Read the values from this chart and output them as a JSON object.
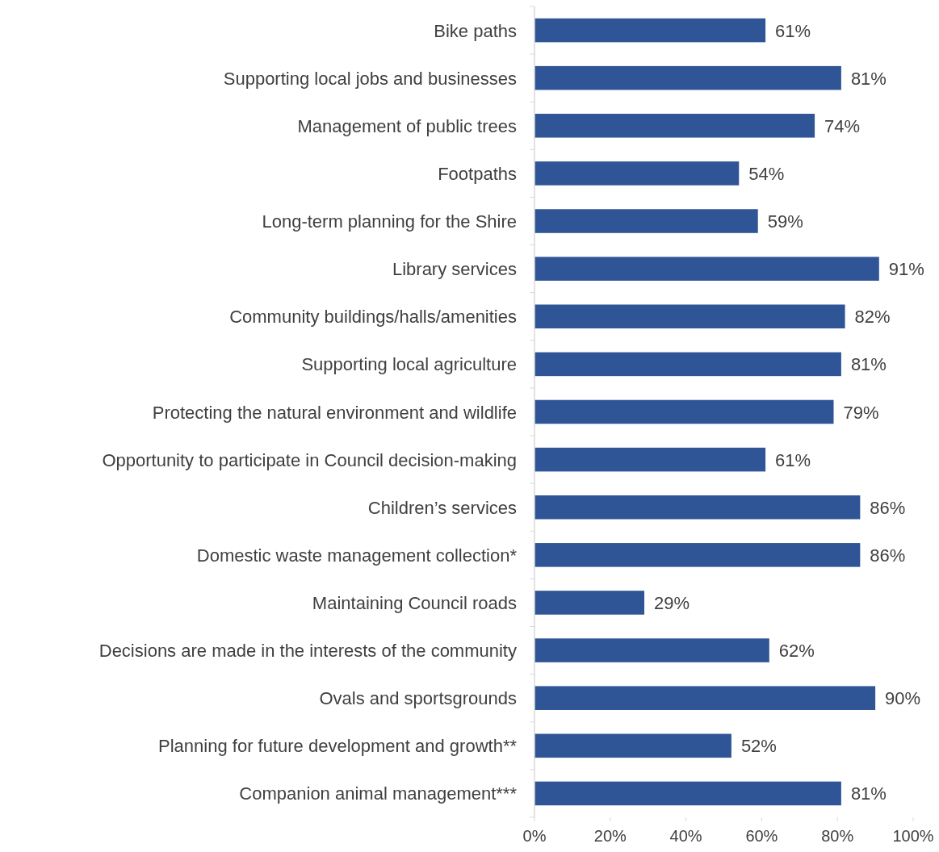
{
  "chart_data": {
    "type": "bar",
    "orientation": "horizontal",
    "categories": [
      "Bike paths",
      "Supporting local jobs and businesses",
      "Management of public trees",
      "Footpaths",
      "Long-term planning for the Shire",
      "Library services",
      "Community buildings/halls/amenities",
      "Supporting local agriculture",
      "Protecting the natural environment and wildlife",
      "Opportunity to participate in Council decision-making",
      "Children’s services",
      "Domestic waste management collection*",
      "Maintaining Council roads",
      "Decisions are made in the interests of the community",
      "Ovals and sportsgrounds",
      "Planning for future development and growth**",
      "Companion animal management***"
    ],
    "values": [
      61,
      81,
      74,
      54,
      59,
      91,
      82,
      81,
      79,
      61,
      86,
      86,
      29,
      62,
      90,
      52,
      81
    ],
    "value_labels": [
      "61%",
      "81%",
      "74%",
      "54%",
      "59%",
      "91%",
      "82%",
      "81%",
      "79%",
      "61%",
      "86%",
      "86%",
      "29%",
      "62%",
      "90%",
      "52%",
      "81%"
    ],
    "color": "#2f5597",
    "xlim": [
      0,
      100
    ],
    "xticks": [
      {
        "value": 0,
        "label": "0%"
      },
      {
        "value": 20,
        "label": "20%"
      },
      {
        "value": 40,
        "label": "40%"
      },
      {
        "value": 60,
        "label": "60%"
      },
      {
        "value": 80,
        "label": "80%"
      },
      {
        "value": 100,
        "label": "100%"
      }
    ],
    "grid": false
  }
}
